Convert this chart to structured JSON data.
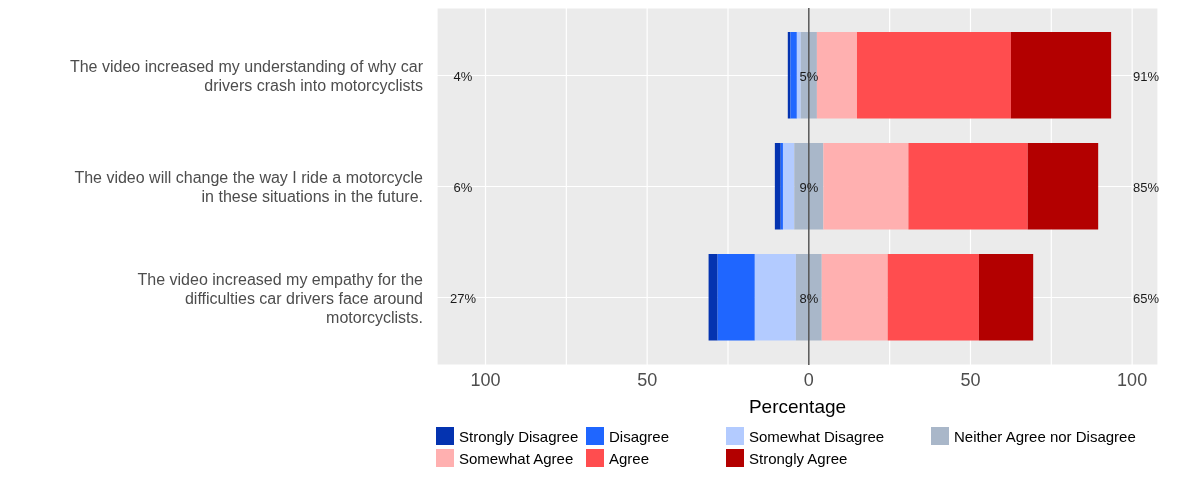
{
  "chart_data": {
    "type": "bar",
    "orientation": "horizontal",
    "xlabel": "Percentage",
    "categories": [
      "The video increased my understanding of why car drivers crash into motorcyclists",
      "The video will change the way I ride a motorcycle in these situations in the future.",
      "The video increased my empathy for the difficulties car drivers face around motorcyclists."
    ],
    "series": [
      {
        "name": "Strongly Disagree",
        "color": "#0433b0",
        "values": [
          0.8,
          1.8,
          2.8
        ],
        "base": [
          -6.5,
          -10.5,
          -31
        ]
      },
      {
        "name": "Disagree",
        "color": "#1f66ff",
        "values": [
          2,
          0.7,
          11.5
        ],
        "base": [
          -5.7,
          -8.7,
          -28.2
        ]
      },
      {
        "name": "Somewhat Disagree",
        "color": "#b3cbff",
        "values": [
          1.2,
          3.5,
          12.7
        ],
        "base": [
          -3.7,
          -8,
          -16.7
        ]
      },
      {
        "name": "Neither Agree nor Disagree",
        "color": "#a9b7c9",
        "values": [
          5,
          9,
          8
        ],
        "base": [
          -2.5,
          -4.5,
          -4
        ]
      },
      {
        "name": "Somewhat Agree",
        "color": "#ffb0b0",
        "values": [
          12.4,
          26.3,
          20.4
        ],
        "base": [
          2.5,
          4.5,
          4
        ]
      },
      {
        "name": "Agree",
        "color": "#ff4d4f",
        "values": [
          47.6,
          36.9,
          28.2
        ],
        "base": [
          14.9,
          30.8,
          24.4
        ]
      },
      {
        "name": "Strongly Agree",
        "color": "#b30000",
        "values": [
          31,
          21.8,
          16.8
        ],
        "base": [
          62.5,
          67.7,
          52.6
        ]
      }
    ],
    "xlim": [
      -115,
      108
    ],
    "xticks": [
      {
        "value": -100,
        "label": "100"
      },
      {
        "value": -75,
        "label": null
      },
      {
        "value": -50,
        "label": "50"
      },
      {
        "value": -25,
        "label": null
      },
      0,
      {
        "value": 25,
        "label": null
      },
      50,
      {
        "value": 75,
        "label": null
      },
      100
    ],
    "ref_lines": [
      {
        "axis": "x",
        "value": 0,
        "color": "#555555"
      }
    ],
    "annotations": [
      "4%",
      "5%",
      "91%",
      "6%",
      "9%",
      "85%",
      "27%",
      "8%",
      "65%"
    ],
    "grid": true,
    "legend": "bottom"
  }
}
